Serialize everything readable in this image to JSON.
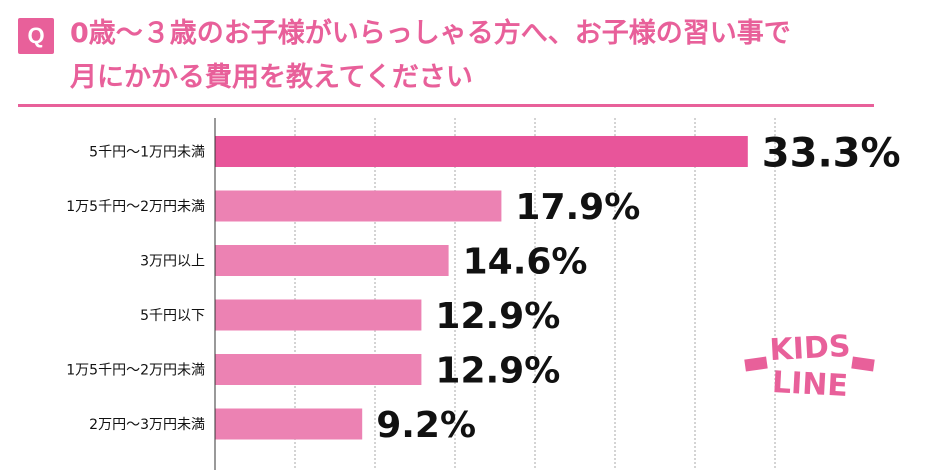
{
  "header": {
    "q_badge": "Q",
    "title_line1": "0歳〜３歳のお子様がいらっしゃる方へ、お子様の習い事で",
    "title_line2": "月にかかる費用を教えてください"
  },
  "logo": {
    "line1": "KIDS",
    "line2": "LINE"
  },
  "colors": {
    "accent": "#e8609a",
    "top_bar": "#e8559a",
    "bar": "#ec82b3",
    "grid": "#aaaaaa"
  },
  "chart_data": {
    "type": "bar",
    "orientation": "horizontal",
    "title": "0歳〜３歳のお子様がいらっしゃる方へ、お子様の習い事で月にかかる費用を教えてください",
    "categories": [
      "5千円〜1万円未満",
      "1万5千円〜2万円未満",
      "3万円以上",
      "5千円以下",
      "1万5千円〜2万円未満",
      "2万円〜3万円未満"
    ],
    "values": [
      33.3,
      17.9,
      14.6,
      12.9,
      12.9,
      9.2
    ],
    "value_labels": [
      "33.3%",
      "17.9%",
      "14.6%",
      "12.9%",
      "12.9%",
      "9.2%"
    ],
    "xlim": [
      0,
      40
    ],
    "grid": true,
    "legend": "none"
  }
}
